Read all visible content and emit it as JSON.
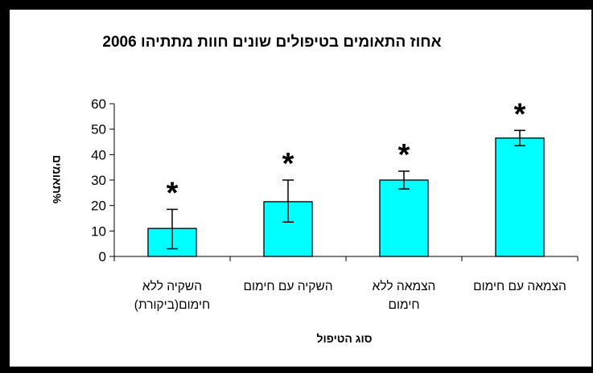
{
  "chart_data": {
    "type": "bar",
    "title": "אחוז התאומים בטיפולים שונים חוות מתתיהו 2006",
    "xlabel": "סוג הטיפול",
    "ylabel": "%תאומים",
    "categories": [
      [
        "השקיה ללא",
        "חימום(ביקורת)"
      ],
      [
        "השקיה עם חימום"
      ],
      [
        "הצמאה ללא",
        "חימום"
      ],
      [
        "הצמאה עם חימום"
      ]
    ],
    "values": [
      11,
      21.5,
      30,
      46.5
    ],
    "error_low": [
      3,
      13.5,
      26.5,
      43.5
    ],
    "error_high": [
      18.5,
      30,
      33.5,
      49.5
    ],
    "annotations": [
      "*",
      "*",
      "*",
      "*"
    ],
    "ylim": [
      0,
      60
    ],
    "yticks": [
      0,
      10,
      20,
      30,
      40,
      50,
      60
    ],
    "grid": false,
    "legend": "none",
    "bar_color": "#00ffff"
  }
}
